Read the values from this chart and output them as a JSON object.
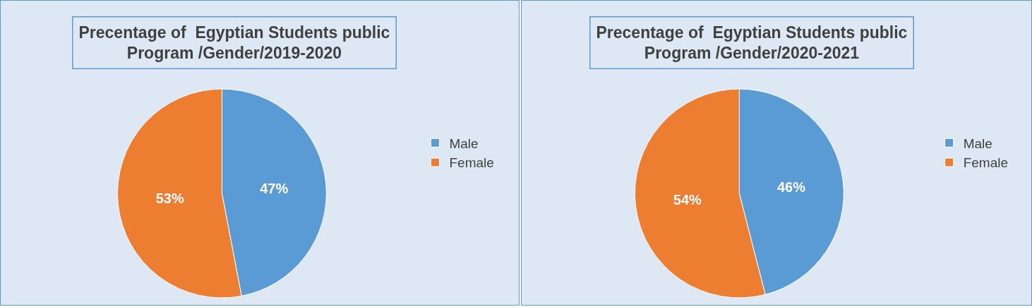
{
  "chart_data": [
    {
      "type": "pie",
      "title": "Precentage of  Egyptian Students public\nProgram /Gender/2019-2020",
      "categories": [
        "Male",
        "Female"
      ],
      "values": [
        47,
        53
      ],
      "colors": [
        "#5b9bd5",
        "#ed7d31"
      ],
      "value_labels": [
        "47%",
        "53%"
      ],
      "legend": "right"
    },
    {
      "type": "pie",
      "title": "Precentage of  Egyptian Students public\nProgram /Gender/2020-2021",
      "categories": [
        "Male",
        "Female"
      ],
      "values": [
        46,
        54
      ],
      "colors": [
        "#5b9bd5",
        "#ed7d31"
      ],
      "value_labels": [
        "46%",
        "54%"
      ],
      "legend": "right"
    }
  ]
}
